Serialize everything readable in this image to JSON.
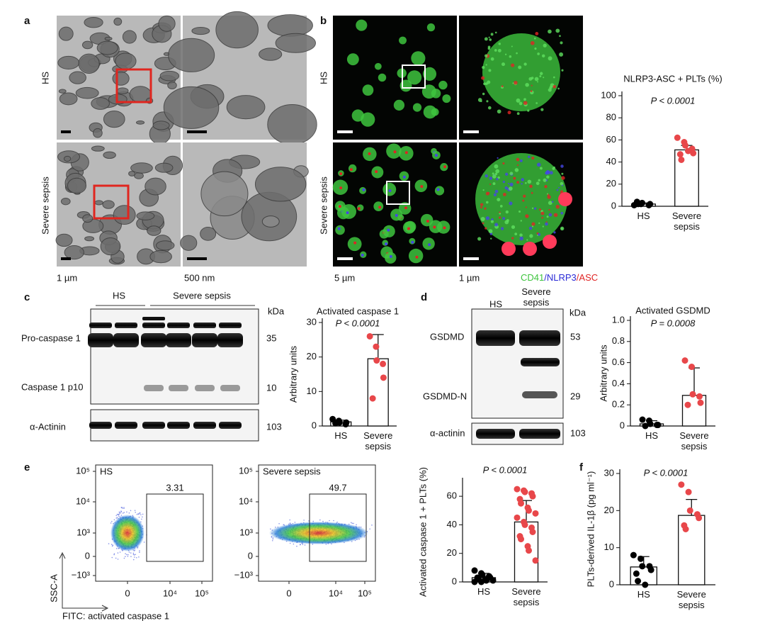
{
  "panels": {
    "a": {
      "label": "a",
      "rows": [
        "HS",
        "Severe sepsis"
      ],
      "scales": [
        "1 µm",
        "500 nm"
      ]
    },
    "b": {
      "label": "b",
      "rows": [
        "HS",
        "Severe sepsis"
      ],
      "scales": [
        "5 µm",
        "1 µm"
      ],
      "legend": [
        {
          "text": "CD41",
          "color": "#3ec43e"
        },
        {
          "text": "/NLRP3",
          "color": "#2b2bd6"
        },
        {
          "text": "/ASC",
          "color": "#e02424"
        }
      ]
    },
    "c": {
      "label": "c",
      "lanes": [
        "HS",
        "Severe sepsis"
      ],
      "unit": "kDa",
      "bands": [
        {
          "name": "Pro-caspase 1",
          "kda": 35
        },
        {
          "name": "Caspase 1 p10",
          "kda": 10
        },
        {
          "name": "α-Actinin",
          "kda": 103
        }
      ]
    },
    "d": {
      "label": "d",
      "lanes": [
        "HS",
        "Severe sepsis"
      ],
      "unit": "kDa",
      "bands": [
        {
          "name": "GSDMD",
          "kda": 53
        },
        {
          "name": "GSDMD-N",
          "kda": 29
        },
        {
          "name": "α-actinin",
          "kda": 103
        }
      ]
    },
    "e": {
      "label": "e",
      "ylabel": "SSC-A",
      "xlabel": "FITC: activated caspase 1",
      "yticks": [
        "10⁵",
        "10⁴",
        "10³",
        "0",
        "−10³"
      ],
      "xticks": [
        "0",
        "10⁴",
        "10⁵"
      ],
      "plots": [
        {
          "name": "HS",
          "gate": 3.31
        },
        {
          "name": "Severe sepsis",
          "gate": 49.7
        }
      ]
    },
    "f": {
      "label": "f"
    }
  },
  "chart_data": [
    {
      "type": "bar",
      "title": "NLRP3-ASC + PLTs (%)",
      "annotation": "P < 0.0001",
      "categories": [
        "HS",
        "Severe sepsis"
      ],
      "values": [
        2,
        51
      ],
      "errors": [
        1,
        4
      ],
      "points": [
        [
          1,
          2,
          3,
          1,
          2,
          4,
          2
        ],
        [
          62,
          58,
          55,
          52,
          48,
          47,
          42,
          50
        ]
      ],
      "point_colors": [
        "#000000",
        "#e8474a"
      ],
      "color": "#ffffff",
      "ylim": [
        0,
        100
      ],
      "yticks": [
        0,
        20,
        40,
        60,
        80,
        100
      ]
    },
    {
      "type": "bar",
      "title": "Activated caspase 1",
      "annotation": "P < 0.0001",
      "ylabel": "Arbitrary units",
      "categories": [
        "HS",
        "Severe sepsis"
      ],
      "values": [
        1.2,
        19.5
      ],
      "errors": [
        0.5,
        7
      ],
      "points": [
        [
          2,
          1.5,
          1,
          0.5,
          1,
          0.8
        ],
        [
          26,
          23,
          19,
          18,
          14,
          8
        ]
      ],
      "point_colors": [
        "#000000",
        "#e8474a"
      ],
      "color": "#ffffff",
      "ylim": [
        0,
        30
      ],
      "yticks": [
        0,
        10,
        20,
        30
      ]
    },
    {
      "type": "bar",
      "title": "Activated GSDMD",
      "annotation": "P = 0.0008",
      "ylabel": "Arbitrary units",
      "categories": [
        "HS",
        "Severe sepsis"
      ],
      "values": [
        0.02,
        0.29
      ],
      "errors": [
        0.03,
        0.26
      ],
      "points": [
        [
          0.06,
          0.05,
          0.02,
          0.01,
          0.01,
          0
        ],
        [
          0.62,
          0.56,
          0.3,
          0.28,
          0.22,
          0.2
        ]
      ],
      "point_colors": [
        "#000000",
        "#e8474a"
      ],
      "color": "#ffffff",
      "ylim": [
        0,
        1
      ],
      "yticks": [
        0,
        0.2,
        0.4,
        0.6,
        0.8,
        {
          "value": 1,
          "label": "1.0"
        }
      ]
    },
    {
      "type": "bar",
      "annotation": "P < 0.0001",
      "ylabel": "Activated caspase 1 + PLTs (%)",
      "categories": [
        "HS",
        "Severe sepsis"
      ],
      "values": [
        3,
        42
      ],
      "errors": [
        3,
        15
      ],
      "points": [
        [
          8,
          6,
          5,
          4,
          3,
          3,
          2,
          2,
          1,
          1,
          0,
          0
        ],
        [
          65,
          64,
          63,
          62,
          60,
          58,
          55,
          52,
          50,
          48,
          45,
          42,
          40,
          38,
          35,
          32,
          30,
          25,
          22,
          15
        ]
      ],
      "point_colors": [
        "#000000",
        "#e8474a"
      ],
      "color": "#ffffff",
      "ylim": [
        0,
        70
      ],
      "yticks": [
        0,
        20,
        40,
        60
      ]
    },
    {
      "type": "bar",
      "annotation": "P < 0.0001",
      "ylabel": "PLTs-derived IL-1β (pg ml⁻¹)",
      "categories": [
        "HS",
        "Severe sepsis"
      ],
      "values": [
        4.8,
        18.7
      ],
      "errors": [
        2.8,
        4.3
      ],
      "points": [
        [
          8,
          7,
          5,
          5,
          4,
          3,
          1,
          0
        ],
        [
          27,
          25,
          20,
          19,
          18,
          16,
          15
        ]
      ],
      "point_colors": [
        "#000000",
        "#e8474a"
      ],
      "color": "#ffffff",
      "ylim": [
        0,
        30
      ],
      "yticks": [
        0,
        10,
        20,
        30
      ]
    }
  ]
}
